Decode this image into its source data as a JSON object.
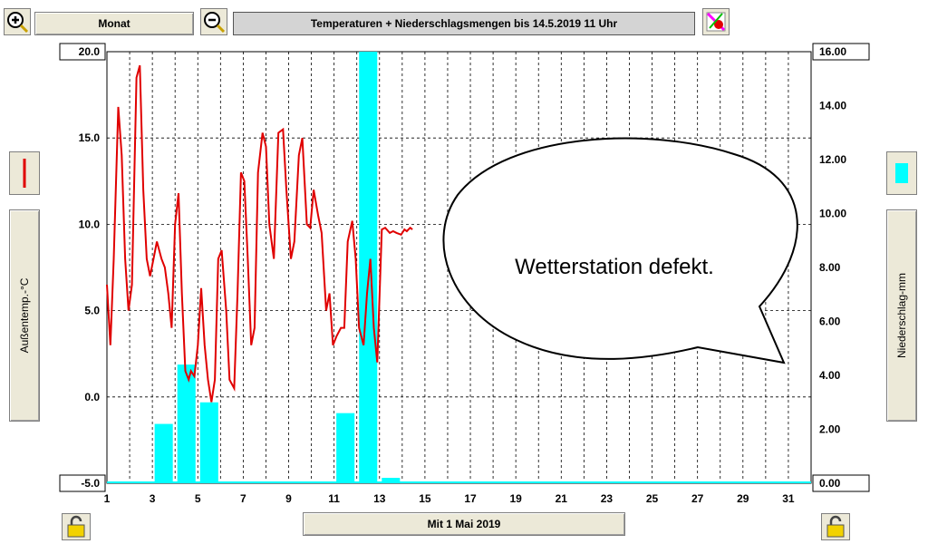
{
  "toolbar": {
    "zoom_in_icon": "magnifier-plus-icon",
    "period_label": "Monat",
    "zoom_out_icon": "magnifier-minus-icon",
    "title": "Temperaturen + Niederschlagsmengen bis 14.5.2019 11 Uhr",
    "tool_icon": "paint-tool-icon"
  },
  "left_axis": {
    "label": "Außentemp.-°C",
    "series_color": "#e00000"
  },
  "right_axis": {
    "label": "Niederschlag-mm",
    "series_color": "#00e5ff"
  },
  "date_button": {
    "label": "Mit 1 Mai 2019"
  },
  "lock_icons": [
    "padlock-icon",
    "padlock-icon"
  ],
  "annotation": {
    "text": "Wetterstation defekt."
  },
  "colors": {
    "temperature": "#e00000",
    "precipitation": "#00ffff",
    "grid": "#000000"
  },
  "chart_data": {
    "type": "line",
    "title": "Temperaturen + Niederschlagsmengen bis 14.5.2019 11 Uhr",
    "xlabel": "Mit 1 Mai 2019",
    "x_ticks": [
      "1",
      "3",
      "5",
      "7",
      "9",
      "11",
      "13",
      "15",
      "17",
      "19",
      "21",
      "23",
      "25",
      "27",
      "29",
      "31"
    ],
    "xlim": [
      1,
      32
    ],
    "ylim_left": [
      -5.0,
      20.0
    ],
    "ylim_right": [
      0.0,
      16.0
    ],
    "y_ticks_left": [
      "-5.0",
      "0.0",
      "5.0",
      "10.0",
      "15.0",
      "20.0"
    ],
    "y_ticks_right": [
      "0.00",
      "2.00",
      "4.00",
      "6.00",
      "8.00",
      "10.00",
      "12.00",
      "14.00",
      "16.00"
    ],
    "grid": true,
    "temperature_series": {
      "axis": "left",
      "x": [
        1.0,
        1.15,
        1.3,
        1.5,
        1.65,
        1.8,
        1.95,
        2.1,
        2.3,
        2.45,
        2.6,
        2.75,
        2.9,
        3.05,
        3.2,
        3.4,
        3.55,
        3.7,
        3.85,
        4.0,
        4.15,
        4.3,
        4.45,
        4.6,
        4.7,
        4.85,
        5.0,
        5.15,
        5.3,
        5.45,
        5.6,
        5.75,
        5.9,
        6.05,
        6.25,
        6.4,
        6.6,
        6.75,
        6.9,
        7.05,
        7.2,
        7.35,
        7.5,
        7.65,
        7.85,
        8.0,
        8.15,
        8.35,
        8.55,
        8.75,
        8.9,
        9.1,
        9.25,
        9.45,
        9.6,
        9.8,
        9.95,
        10.1,
        10.3,
        10.45,
        10.65,
        10.8,
        10.95,
        11.1,
        11.3,
        11.45,
        11.6,
        11.8,
        11.95,
        12.1,
        12.3,
        12.45,
        12.6,
        12.75,
        12.9,
        13.1,
        13.25,
        13.45,
        13.6,
        13.75,
        13.95,
        14.1,
        14.2,
        14.35,
        14.45
      ],
      "y": [
        6.5,
        3.0,
        8.0,
        16.8,
        14.0,
        8.0,
        5.0,
        6.5,
        18.5,
        19.2,
        12.0,
        8.0,
        7.0,
        8.0,
        9.0,
        8.0,
        7.5,
        6.0,
        4.0,
        10.0,
        11.8,
        6.0,
        1.5,
        1.0,
        1.5,
        1.2,
        3.0,
        6.3,
        3.0,
        1.0,
        -0.3,
        1.0,
        8.0,
        8.5,
        5.0,
        1.0,
        0.5,
        6.0,
        13.0,
        12.5,
        8.0,
        3.0,
        4.0,
        13.0,
        15.3,
        14.5,
        10.0,
        8.0,
        15.3,
        15.5,
        12.0,
        8.0,
        9.0,
        14.0,
        15.0,
        10.0,
        9.8,
        12.0,
        10.5,
        9.5,
        5.0,
        6.0,
        3.0,
        3.5,
        4.0,
        4.0,
        9.0,
        10.2,
        8.0,
        4.0,
        3.0,
        6.0,
        8.0,
        4.0,
        2.0,
        9.7,
        9.8,
        9.5,
        9.6,
        9.5,
        9.4,
        9.7,
        9.6,
        9.8,
        9.7
      ]
    },
    "precipitation_series": {
      "axis": "right",
      "bars": [
        {
          "day": 3,
          "value": 2.2
        },
        {
          "day": 4,
          "value": 4.4
        },
        {
          "day": 5,
          "value": 3.0
        },
        {
          "day": 11,
          "value": 2.6
        },
        {
          "day": 12,
          "value": 16.0
        },
        {
          "day": 13,
          "value": 0.2
        }
      ]
    }
  }
}
